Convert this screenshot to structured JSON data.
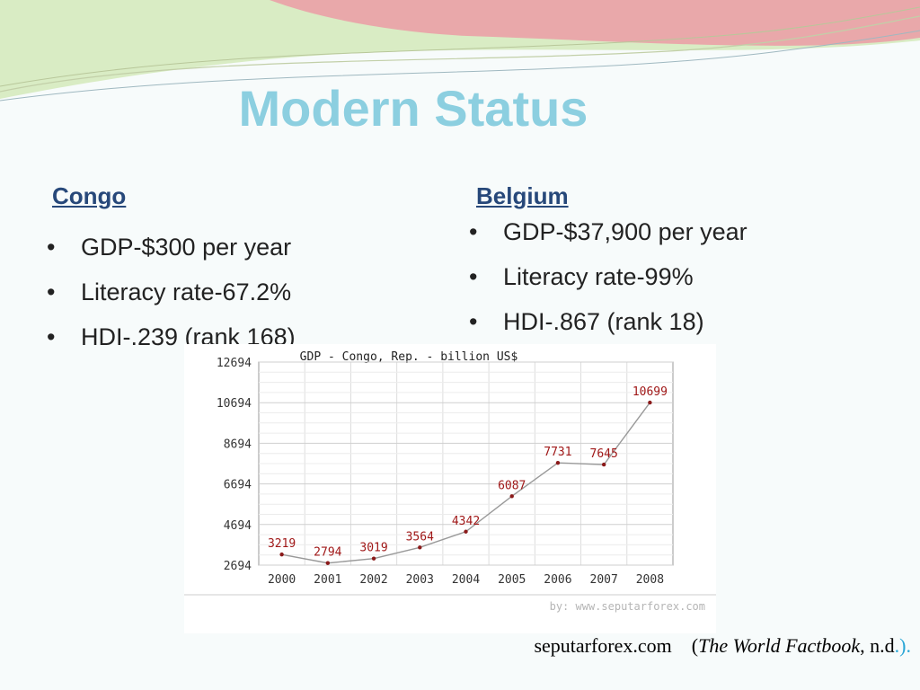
{
  "slide": {
    "title": "Modern Status",
    "colors": {
      "title": "#8ccfe0",
      "heading": "#27487a",
      "swoosh_red": "#e58a8e",
      "swoosh_green": "#c9e0a8"
    }
  },
  "congo": {
    "heading": "Congo",
    "bullet_glyph": "•",
    "items": [
      "GDP-$300 per year",
      "Literacy rate-67.2%",
      "HDI-.239 (rank 168)"
    ]
  },
  "belgium": {
    "heading": "Belgium",
    "bullet_glyph": "•",
    "items": [
      "GDP-$37,900 per year",
      "Literacy rate-99%",
      "HDI-.867 (rank 18)"
    ]
  },
  "chart_data": {
    "type": "line",
    "title": "GDP - Congo, Rep. - billion US$",
    "x": [
      "2000",
      "2001",
      "2002",
      "2003",
      "2004",
      "2005",
      "2006",
      "2007",
      "2008"
    ],
    "values": [
      3219,
      2794,
      3019,
      3564,
      4342,
      6087,
      7731,
      7645,
      10699
    ],
    "yticks": [
      12694,
      10694,
      8694,
      6694,
      4694,
      2694
    ],
    "ylim": [
      2694,
      12694
    ],
    "grid": true,
    "watermark": "by: www.seputarforex.com",
    "colors": {
      "line": "#999999",
      "point": "#8b1a1a",
      "label": "#a01818"
    }
  },
  "source": {
    "site": "seputarforex.com",
    "open_paren": "(",
    "book": "The World Factbook",
    "suffix": ", n.d",
    "close": ".)."
  }
}
